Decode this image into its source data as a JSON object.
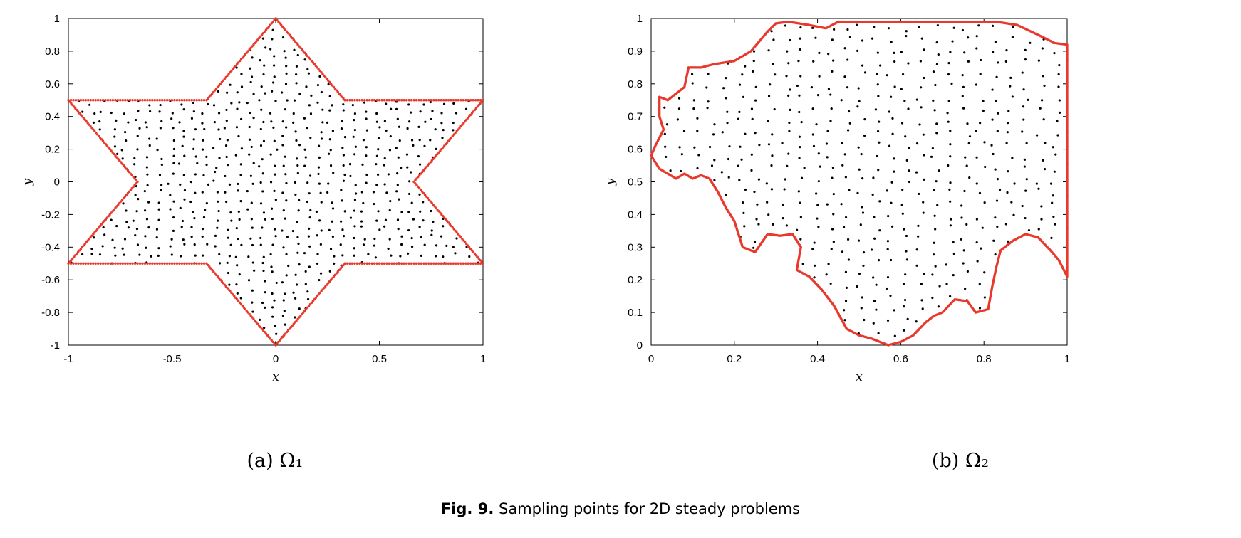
{
  "chart_data": [
    {
      "type": "scatter",
      "panel_label": "(a) Ω₁",
      "xlabel": "x",
      "ylabel": "y",
      "xlim": [
        -1,
        1
      ],
      "ylim": [
        -1,
        1
      ],
      "xticks": [
        "-1",
        "-0.5",
        "0",
        "0.5",
        "1"
      ],
      "yticks": [
        "-1",
        "-0.8",
        "-0.6",
        "-0.4",
        "-0.2",
        "0",
        "0.2",
        "0.4",
        "0.6",
        "0.8",
        "1"
      ],
      "grid": false,
      "legend": "none",
      "series": [
        {
          "role": "interior",
          "color": "#000000",
          "shape": "six-pointed star (hexagram) with vertices at (0,±1), (±1,±0.5); interior point cloud"
        },
        {
          "role": "boundary",
          "color": "#e8392c",
          "boundary_polygon": [
            [
              0,
              1
            ],
            [
              0.3333,
              0.5
            ],
            [
              1,
              0.5
            ],
            [
              0.6667,
              0
            ],
            [
              1,
              -0.5
            ],
            [
              0.3333,
              -0.5
            ],
            [
              0,
              -1
            ],
            [
              -0.3333,
              -0.5
            ],
            [
              -1,
              -0.5
            ],
            [
              -0.6667,
              0
            ],
            [
              -1,
              0.5
            ],
            [
              -0.3333,
              0.5
            ]
          ]
        }
      ]
    },
    {
      "type": "scatter",
      "panel_label": "(b) Ω₂",
      "xlabel": "x",
      "ylabel": "y",
      "xlim": [
        0,
        1
      ],
      "ylim": [
        0,
        1
      ],
      "xticks": [
        "0",
        "0.2",
        "0.4",
        "0.6",
        "0.8",
        "1"
      ],
      "yticks": [
        "0",
        "0.1",
        "0.2",
        "0.3",
        "0.4",
        "0.5",
        "0.6",
        "0.7",
        "0.8",
        "0.9",
        "1"
      ],
      "grid": false,
      "legend": "none",
      "series": [
        {
          "role": "interior",
          "color": "#000000"
        },
        {
          "role": "boundary",
          "color": "#e8392c",
          "boundary_polygon": [
            [
              0,
              0.58
            ],
            [
              0.02,
              0.54
            ],
            [
              0.04,
              0.525
            ],
            [
              0.06,
              0.51
            ],
            [
              0.08,
              0.525
            ],
            [
              0.1,
              0.51
            ],
            [
              0.12,
              0.52
            ],
            [
              0.14,
              0.51
            ],
            [
              0.16,
              0.47
            ],
            [
              0.18,
              0.42
            ],
            [
              0.2,
              0.38
            ],
            [
              0.22,
              0.3
            ],
            [
              0.25,
              0.285
            ],
            [
              0.28,
              0.34
            ],
            [
              0.31,
              0.335
            ],
            [
              0.34,
              0.34
            ],
            [
              0.36,
              0.3
            ],
            [
              0.35,
              0.23
            ],
            [
              0.38,
              0.21
            ],
            [
              0.41,
              0.17
            ],
            [
              0.44,
              0.12
            ],
            [
              0.47,
              0.05
            ],
            [
              0.5,
              0.03
            ],
            [
              0.53,
              0.02
            ],
            [
              0.57,
              0.0
            ],
            [
              0.6,
              0.01
            ],
            [
              0.63,
              0.03
            ],
            [
              0.66,
              0.07
            ],
            [
              0.68,
              0.09
            ],
            [
              0.7,
              0.1
            ],
            [
              0.73,
              0.14
            ],
            [
              0.76,
              0.135
            ],
            [
              0.78,
              0.1
            ],
            [
              0.81,
              0.11
            ],
            [
              0.82,
              0.18
            ],
            [
              0.83,
              0.24
            ],
            [
              0.84,
              0.29
            ],
            [
              0.87,
              0.32
            ],
            [
              0.9,
              0.34
            ],
            [
              0.93,
              0.33
            ],
            [
              0.96,
              0.29
            ],
            [
              0.98,
              0.26
            ],
            [
              1.0,
              0.21
            ],
            [
              1.0,
              0.92
            ],
            [
              0.97,
              0.925
            ],
            [
              0.93,
              0.95
            ],
            [
              0.88,
              0.98
            ],
            [
              0.83,
              0.99
            ],
            [
              0.75,
              0.99
            ],
            [
              0.65,
              0.99
            ],
            [
              0.55,
              0.99
            ],
            [
              0.45,
              0.99
            ],
            [
              0.42,
              0.97
            ],
            [
              0.38,
              0.98
            ],
            [
              0.33,
              0.99
            ],
            [
              0.3,
              0.985
            ],
            [
              0.28,
              0.96
            ],
            [
              0.26,
              0.93
            ],
            [
              0.24,
              0.9
            ],
            [
              0.2,
              0.87
            ],
            [
              0.15,
              0.86
            ],
            [
              0.12,
              0.85
            ],
            [
              0.09,
              0.85
            ],
            [
              0.08,
              0.79
            ],
            [
              0.06,
              0.77
            ],
            [
              0.04,
              0.75
            ],
            [
              0.02,
              0.76
            ],
            [
              0.02,
              0.7
            ],
            [
              0.03,
              0.66
            ],
            [
              0.01,
              0.61
            ]
          ]
        }
      ]
    }
  ],
  "figure_caption": {
    "label": "Fig. 9.",
    "text": "Sampling points for 2D steady problems"
  }
}
